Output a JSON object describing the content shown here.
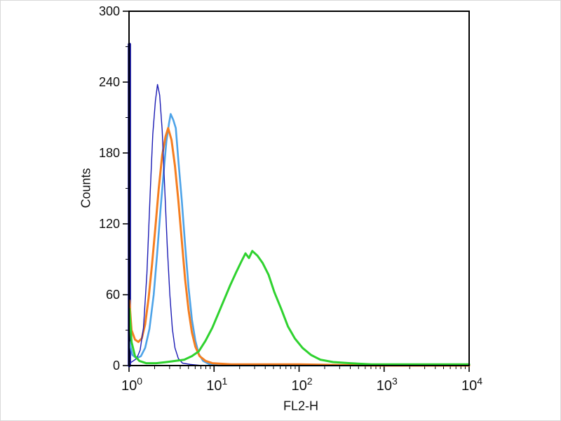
{
  "figure": {
    "xlabel": "FL2-H",
    "ylabel": "Counts"
  },
  "chart_data": {
    "type": "line",
    "subtype": "flow-cytometry-histogram-overlay",
    "title": "",
    "xlabel": "FL2-H",
    "ylabel": "Counts",
    "x_scale": "log10",
    "xlim_exponents": [
      0,
      4
    ],
    "x_major_tick_exponents": [
      0,
      1,
      2,
      3,
      4
    ],
    "x_minor_mantissas": [
      2,
      3,
      4,
      5,
      6,
      7,
      8,
      9
    ],
    "ylim": [
      0,
      300
    ],
    "y_major_ticks": [
      0,
      60,
      120,
      180,
      240,
      300
    ],
    "y_minor_tick_step": 30,
    "grid": false,
    "legend": "none",
    "frame_color": "#000000",
    "background": "#ffffff",
    "series": [
      {
        "name": "edge-pileup-spike",
        "color": "#00008b",
        "width": 4.5,
        "points": [
          [
            0.004,
            0
          ],
          [
            0.004,
            272
          ]
        ]
      },
      {
        "name": "light-blue",
        "color": "#4da3e8",
        "width": 2.6,
        "points": [
          [
            0.004,
            20
          ],
          [
            0.04,
            9
          ],
          [
            0.09,
            6
          ],
          [
            0.14,
            8
          ],
          [
            0.19,
            15
          ],
          [
            0.24,
            31
          ],
          [
            0.29,
            60
          ],
          [
            0.33,
            94
          ],
          [
            0.37,
            132
          ],
          [
            0.41,
            166
          ],
          [
            0.44,
            190
          ],
          [
            0.47,
            205
          ],
          [
            0.49,
            213
          ],
          [
            0.52,
            208
          ],
          [
            0.55,
            201
          ],
          [
            0.58,
            174
          ],
          [
            0.62,
            140
          ],
          [
            0.66,
            102
          ],
          [
            0.7,
            66
          ],
          [
            0.74,
            39
          ],
          [
            0.78,
            21
          ],
          [
            0.82,
            10
          ],
          [
            0.87,
            4
          ],
          [
            0.95,
            1
          ],
          [
            1.05,
            0
          ],
          [
            4,
            0
          ]
        ]
      },
      {
        "name": "orange",
        "color": "#f57e20",
        "width": 3,
        "points": [
          [
            0.004,
            55
          ],
          [
            0.03,
            30
          ],
          [
            0.07,
            22
          ],
          [
            0.11,
            20
          ],
          [
            0.15,
            23
          ],
          [
            0.19,
            35
          ],
          [
            0.23,
            57
          ],
          [
            0.27,
            85
          ],
          [
            0.31,
            117
          ],
          [
            0.35,
            150
          ],
          [
            0.39,
            178
          ],
          [
            0.43,
            194
          ],
          [
            0.46,
            201
          ],
          [
            0.5,
            191
          ],
          [
            0.54,
            169
          ],
          [
            0.58,
            140
          ],
          [
            0.62,
            106
          ],
          [
            0.66,
            73
          ],
          [
            0.7,
            47
          ],
          [
            0.74,
            28
          ],
          [
            0.78,
            16
          ],
          [
            0.83,
            8
          ],
          [
            0.9,
            4
          ],
          [
            0.98,
            2
          ],
          [
            1.2,
            1
          ],
          [
            2.0,
            1
          ],
          [
            2.9,
            0
          ],
          [
            4,
            0
          ]
        ]
      },
      {
        "name": "navy-thin",
        "color": "#1a1ab4",
        "width": 1.4,
        "points": [
          [
            0.01,
            2
          ],
          [
            0.05,
            4
          ],
          [
            0.09,
            6
          ],
          [
            0.13,
            13
          ],
          [
            0.17,
            32
          ],
          [
            0.21,
            78
          ],
          [
            0.25,
            148
          ],
          [
            0.28,
            196
          ],
          [
            0.31,
            224
          ],
          [
            0.335,
            238
          ],
          [
            0.36,
            229
          ],
          [
            0.39,
            199
          ],
          [
            0.42,
            150
          ],
          [
            0.45,
            100
          ],
          [
            0.48,
            60
          ],
          [
            0.51,
            31
          ],
          [
            0.54,
            15
          ],
          [
            0.58,
            6
          ],
          [
            0.63,
            2
          ],
          [
            0.72,
            1
          ],
          [
            0.85,
            0
          ],
          [
            4,
            0
          ]
        ]
      },
      {
        "name": "green",
        "color": "#2fd22f",
        "width": 3,
        "points": [
          [
            0.004,
            48
          ],
          [
            0.03,
            20
          ],
          [
            0.07,
            8
          ],
          [
            0.12,
            4
          ],
          [
            0.2,
            2
          ],
          [
            0.32,
            2
          ],
          [
            0.44,
            3
          ],
          [
            0.55,
            4
          ],
          [
            0.65,
            5
          ],
          [
            0.74,
            8
          ],
          [
            0.82,
            12
          ],
          [
            0.9,
            21
          ],
          [
            0.98,
            32
          ],
          [
            1.05,
            44
          ],
          [
            1.12,
            56
          ],
          [
            1.19,
            68
          ],
          [
            1.26,
            79
          ],
          [
            1.32,
            88
          ],
          [
            1.37,
            95
          ],
          [
            1.41,
            91
          ],
          [
            1.45,
            97
          ],
          [
            1.51,
            93
          ],
          [
            1.57,
            87
          ],
          [
            1.64,
            77
          ],
          [
            1.71,
            62
          ],
          [
            1.79,
            48
          ],
          [
            1.87,
            33
          ],
          [
            1.95,
            23
          ],
          [
            2.04,
            15
          ],
          [
            2.14,
            9
          ],
          [
            2.25,
            5
          ],
          [
            2.4,
            3
          ],
          [
            2.6,
            2
          ],
          [
            2.85,
            1
          ],
          [
            3.3,
            1
          ],
          [
            4.0,
            1
          ]
        ]
      }
    ]
  }
}
